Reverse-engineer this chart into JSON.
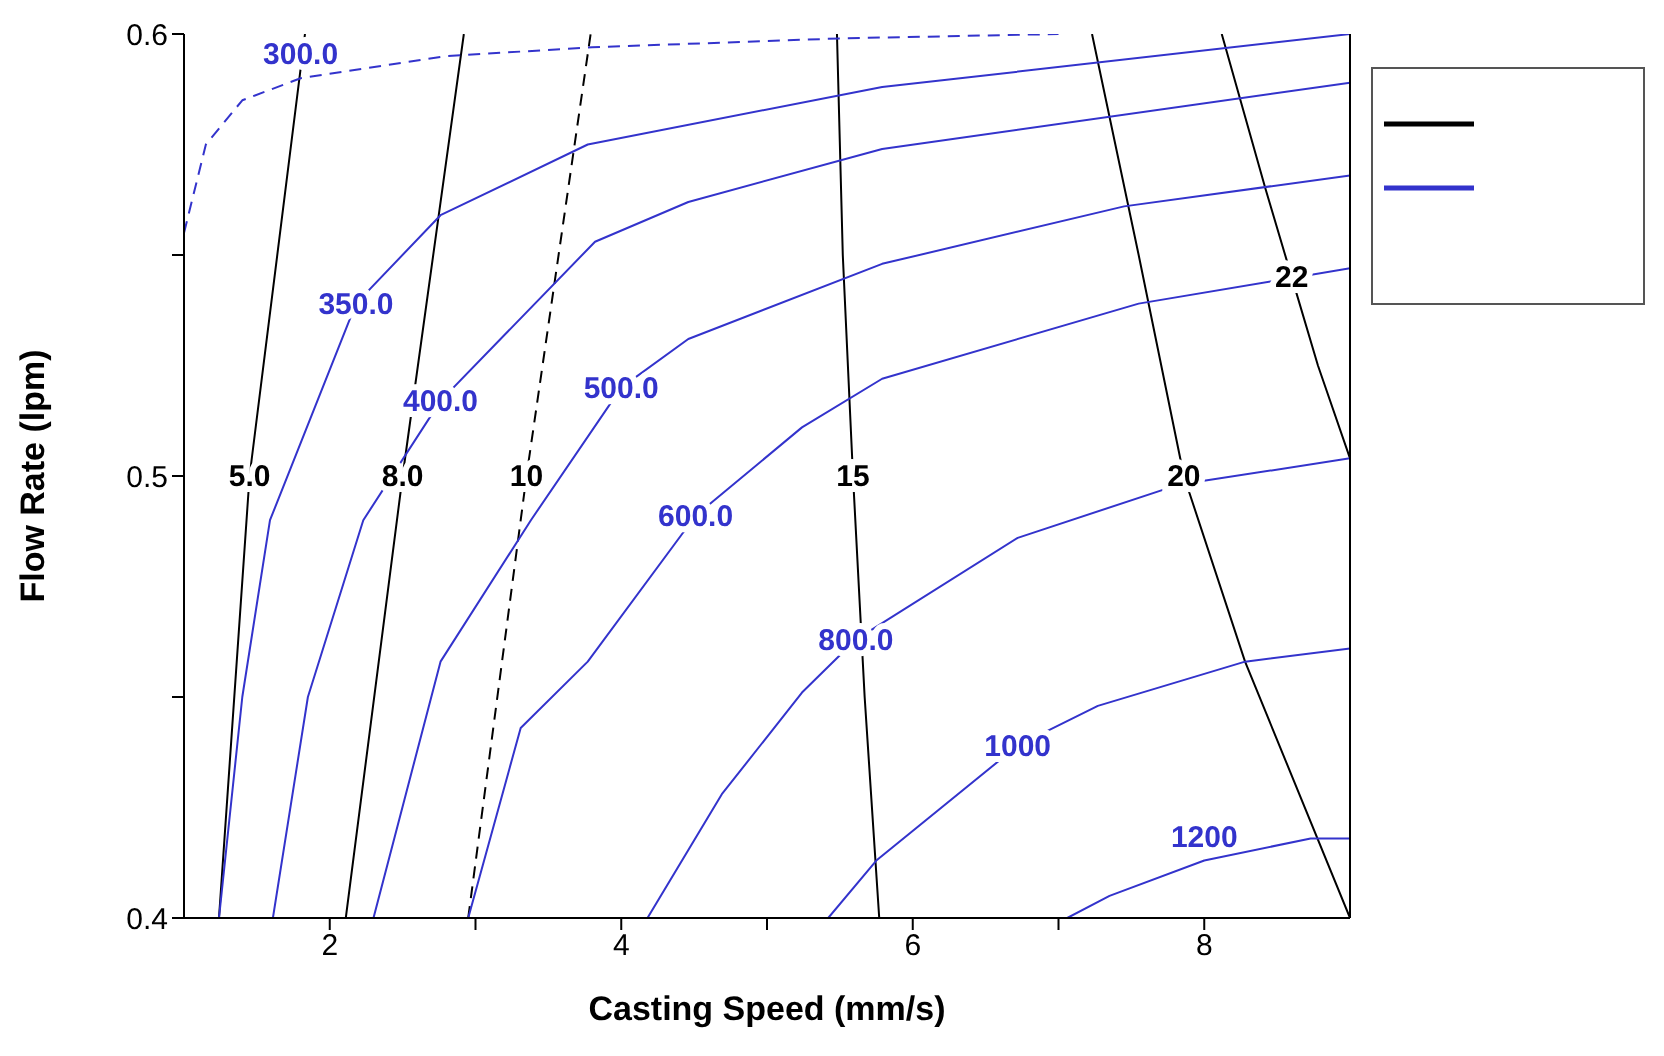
{
  "chart_data": {
    "type": "line",
    "xlabel": "Casting Speed (mm/s)",
    "ylabel": "Flow Rate (lpm)",
    "xlim": [
      1,
      9
    ],
    "xticks": [
      2,
      {
        "value": 3,
        "label": null
      },
      4,
      {
        "value": 5,
        "label": null
      },
      6,
      {
        "value": 7,
        "label": null
      },
      8
    ],
    "ylim": [
      0.4,
      0.6
    ],
    "yticks": [
      0.4,
      {
        "value": 0.45,
        "label": null
      },
      0.5,
      {
        "value": 0.55,
        "label": null
      },
      0.6
    ],
    "legend": "right",
    "line_style": "solid",
    "marker": "none",
    "series": [
      {
        "name": "5.0",
        "color": "#000000",
        "x": [
          1.24,
          1.45,
          1.83
        ],
        "values": [
          0.4,
          0.5,
          0.6
        ]
      },
      {
        "name": "8.0",
        "color": "#000000",
        "x": [
          2.11,
          2.5,
          2.92
        ],
        "values": [
          0.4,
          0.5,
          0.6
        ]
      },
      {
        "name": "10",
        "color": "#000000",
        "line_style": "dashed",
        "x": [
          2.95,
          3.35,
          3.79
        ],
        "values": [
          0.4,
          0.5,
          0.6
        ]
      },
      {
        "name": "15",
        "color": "#000000",
        "x": [
          5.77,
          5.67,
          5.59,
          5.52,
          5.48
        ],
        "values": [
          0.4,
          0.45,
          0.5,
          0.55,
          0.6
        ]
      },
      {
        "name": "20",
        "color": "#000000",
        "x": [
          7.23,
          7.55,
          7.86,
          8.28,
          9.0
        ],
        "values": [
          0.6,
          0.55,
          0.5,
          0.458,
          0.4
        ]
      },
      {
        "name": "22",
        "color": "#000000",
        "x": [
          8.12,
          8.42,
          8.6,
          8.78,
          9.0
        ],
        "values": [
          0.6,
          0.565,
          0.545,
          0.525,
          0.504
        ]
      },
      {
        "name": "300.0",
        "color": "#3333cc",
        "line_style": "dashed",
        "x": [
          1.0,
          1.15,
          1.4,
          1.8,
          2.8,
          3.8,
          5.5,
          7.0
        ],
        "values": [
          0.555,
          0.575,
          0.585,
          0.59,
          0.595,
          0.597,
          0.599,
          0.6
        ]
      },
      {
        "name": "350.0",
        "color": "#3333cc",
        "x": [
          1.24,
          1.4,
          1.59,
          2.18,
          2.76,
          3.77,
          5.79,
          9.0
        ],
        "values": [
          0.4,
          0.45,
          0.49,
          0.539,
          0.559,
          0.575,
          0.588,
          0.6
        ]
      },
      {
        "name": "400.0",
        "color": "#3333cc",
        "x": [
          1.61,
          1.85,
          2.23,
          2.76,
          3.82,
          4.46,
          5.79,
          9.0
        ],
        "values": [
          0.4,
          0.45,
          0.49,
          0.517,
          0.553,
          0.562,
          0.574,
          0.589
        ]
      },
      {
        "name": "500.0",
        "color": "#3333cc",
        "x": [
          2.3,
          2.76,
          3.38,
          4.0,
          4.46,
          5.79,
          7.45,
          9.0
        ],
        "values": [
          0.4,
          0.458,
          0.49,
          0.52,
          0.531,
          0.548,
          0.561,
          0.568
        ]
      },
      {
        "name": "600.0",
        "color": "#3333cc",
        "x": [
          2.95,
          3.31,
          3.77,
          4.51,
          5.24,
          5.79,
          7.55,
          9.0
        ],
        "values": [
          0.4,
          0.443,
          0.458,
          0.491,
          0.511,
          0.522,
          0.539,
          0.547
        ]
      },
      {
        "name": "800.0",
        "color": "#3333cc",
        "x": [
          4.18,
          4.69,
          5.24,
          5.61,
          6.72,
          7.82,
          9.0
        ],
        "values": [
          0.4,
          0.428,
          0.451,
          0.463,
          0.486,
          0.498,
          0.504
        ]
      },
      {
        "name": "1000",
        "color": "#3333cc",
        "x": [
          5.42,
          5.75,
          6.72,
          7.27,
          8.28,
          9.0
        ],
        "values": [
          0.4,
          0.413,
          0.439,
          0.448,
          0.458,
          0.461
        ]
      },
      {
        "name": "1200",
        "color": "#3333cc",
        "x": [
          7.06,
          7.35,
          8.0,
          8.73,
          9.0
        ],
        "values": [
          0.4,
          0.405,
          0.413,
          0.418,
          0.418
        ]
      }
    ]
  }
}
